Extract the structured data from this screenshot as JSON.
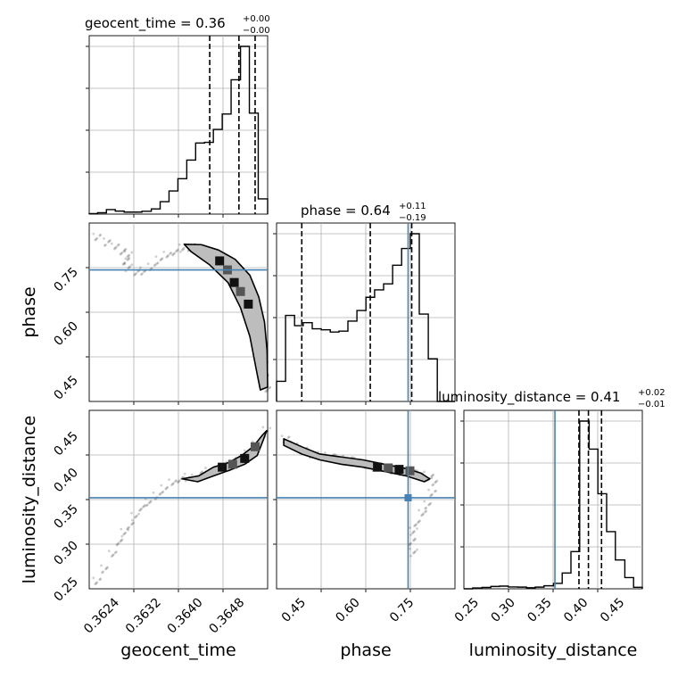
{
  "chart_data": {
    "type": "corner",
    "parameters": [
      "geocent_time",
      "phase",
      "luminosity_distance"
    ],
    "truths": {
      "phase": 0.745,
      "luminosity_distance": 0.36
    },
    "truth_color": "#4682b4",
    "panels": {
      "geocent_time_hist": {
        "title": {
          "prefix": "geocent_time = 0.36",
          "sup": "+0.00",
          "sub": "−0.00"
        },
        "xlim": [
          0.3619,
          0.36532
        ],
        "quantiles": [
          0.36421,
          0.36477,
          0.36508
        ],
        "edges": [
          0.3619,
          0.36206,
          0.36223,
          0.3624,
          0.36257,
          0.36274,
          0.36291,
          0.36309,
          0.36326,
          0.36343,
          0.3636,
          0.36377,
          0.36394,
          0.36411,
          0.36428,
          0.36445,
          0.36462,
          0.3648,
          0.36497,
          0.36514,
          0.36532
        ],
        "counts": [
          0.003,
          0.008,
          0.027,
          0.018,
          0.012,
          0.012,
          0.017,
          0.031,
          0.074,
          0.138,
          0.211,
          0.322,
          0.424,
          0.428,
          0.505,
          0.597,
          0.801,
          1.0,
          0.602,
          0.091
        ]
      },
      "phase_hist": {
        "title": {
          "prefix": "phase = 0.64",
          "sup": "+0.11",
          "sub": "−0.19"
        },
        "xlim": [
          0.38,
          0.875
        ],
        "quantiles": [
          0.45,
          0.64,
          0.755
        ],
        "edges": [
          0.38,
          0.405,
          0.43,
          0.454,
          0.479,
          0.504,
          0.529,
          0.553,
          0.578,
          0.603,
          0.628,
          0.652,
          0.677,
          0.702,
          0.727,
          0.751,
          0.776,
          0.801,
          0.826,
          0.85,
          0.875
        ],
        "counts": [
          0.12,
          0.513,
          0.452,
          0.47,
          0.433,
          0.427,
          0.414,
          0.419,
          0.479,
          0.542,
          0.621,
          0.665,
          0.701,
          0.812,
          0.912,
          1.0,
          0.521,
          0.254,
          0.0,
          0.0
        ]
      },
      "luminosity_distance_hist": {
        "title": {
          "prefix": "luminosity_distance = 0.41",
          "sup": "+0.02",
          "sub": "−0.01"
        },
        "xlim": [
          0.235,
          0.48
        ],
        "quantiles": [
          0.393,
          0.406,
          0.424
        ],
        "edges": [
          0.235,
          0.247,
          0.26,
          0.272,
          0.284,
          0.296,
          0.309,
          0.321,
          0.333,
          0.345,
          0.358,
          0.37,
          0.382,
          0.394,
          0.407,
          0.419,
          0.431,
          0.443,
          0.456,
          0.468,
          0.48
        ],
        "counts": [
          0.0,
          0.005,
          0.008,
          0.014,
          0.016,
          0.011,
          0.01,
          0.006,
          0.01,
          0.018,
          0.032,
          0.094,
          0.222,
          1.0,
          0.833,
          0.567,
          0.341,
          0.172,
          0.067,
          0.009
        ]
      },
      "phase_vs_geocent_time": {
        "xlim": [
          0.3619,
          0.36532
        ],
        "ylim": [
          0.38,
          0.875
        ],
        "samples": [
          [
            0.36205,
            0.835
          ],
          [
            0.36225,
            0.822
          ],
          [
            0.3624,
            0.808
          ],
          [
            0.36255,
            0.798
          ],
          [
            0.36265,
            0.786
          ],
          [
            0.3626,
            0.77
          ],
          [
            0.36265,
            0.752
          ],
          [
            0.3628,
            0.738
          ],
          [
            0.36295,
            0.742
          ],
          [
            0.3631,
            0.752
          ],
          [
            0.36325,
            0.772
          ],
          [
            0.3634,
            0.785
          ],
          [
            0.36355,
            0.796
          ],
          [
            0.3637,
            0.805
          ],
          [
            0.36385,
            0.808
          ],
          [
            0.364,
            0.806
          ],
          [
            0.36415,
            0.798
          ],
          [
            0.3643,
            0.786
          ],
          [
            0.36445,
            0.77
          ],
          [
            0.3646,
            0.752
          ],
          [
            0.36472,
            0.728
          ],
          [
            0.36484,
            0.7
          ],
          [
            0.36494,
            0.668
          ],
          [
            0.36503,
            0.632
          ],
          [
            0.3651,
            0.596
          ],
          [
            0.36516,
            0.558
          ],
          [
            0.36521,
            0.52
          ],
          [
            0.36525,
            0.482
          ],
          [
            0.36528,
            0.448
          ],
          [
            0.3653,
            0.412
          ]
        ],
        "contour_path": [
          [
            0.36372,
            0.816
          ],
          [
            0.36405,
            0.815
          ],
          [
            0.36438,
            0.8
          ],
          [
            0.3647,
            0.774
          ],
          [
            0.36498,
            0.73
          ],
          [
            0.36515,
            0.67
          ],
          [
            0.36526,
            0.6
          ],
          [
            0.36531,
            0.52
          ],
          [
            0.36532,
            0.42
          ],
          [
            0.36518,
            0.412
          ],
          [
            0.3651,
            0.47
          ],
          [
            0.36498,
            0.56
          ],
          [
            0.3648,
            0.64
          ],
          [
            0.36456,
            0.71
          ],
          [
            0.3642,
            0.76
          ],
          [
            0.36385,
            0.796
          ],
          [
            0.36372,
            0.816
          ]
        ],
        "peak_cells": [
          [
            0.3644,
            0.77
          ],
          [
            0.36455,
            0.745
          ],
          [
            0.36468,
            0.71
          ],
          [
            0.3648,
            0.685
          ],
          [
            0.36495,
            0.65
          ]
        ]
      },
      "luminosity_distance_vs_geocent_time": {
        "xlim": [
          0.3619,
          0.36532
        ],
        "ylim": [
          0.235,
          0.48
        ],
        "samples": [
          [
            0.36205,
            0.245
          ],
          [
            0.3622,
            0.262
          ],
          [
            0.36235,
            0.282
          ],
          [
            0.36248,
            0.3
          ],
          [
            0.36258,
            0.312
          ],
          [
            0.36268,
            0.322
          ],
          [
            0.36278,
            0.334
          ],
          [
            0.3629,
            0.346
          ],
          [
            0.36305,
            0.354
          ],
          [
            0.3632,
            0.362
          ],
          [
            0.36335,
            0.372
          ],
          [
            0.3635,
            0.38
          ],
          [
            0.36365,
            0.386
          ],
          [
            0.3638,
            0.388
          ],
          [
            0.364,
            0.392
          ],
          [
            0.3642,
            0.396
          ],
          [
            0.3644,
            0.4
          ],
          [
            0.3646,
            0.404
          ],
          [
            0.36478,
            0.41
          ],
          [
            0.36495,
            0.42
          ],
          [
            0.3651,
            0.432
          ],
          [
            0.36522,
            0.442
          ],
          [
            0.3653,
            0.452
          ]
        ],
        "contour_path": [
          [
            0.36368,
            0.386
          ],
          [
            0.364,
            0.39
          ],
          [
            0.36428,
            0.402
          ],
          [
            0.36456,
            0.408
          ],
          [
            0.36482,
            0.418
          ],
          [
            0.36504,
            0.43
          ],
          [
            0.36522,
            0.446
          ],
          [
            0.3653,
            0.452
          ],
          [
            0.36524,
            0.44
          ],
          [
            0.36512,
            0.418
          ],
          [
            0.36488,
            0.406
          ],
          [
            0.3646,
            0.398
          ],
          [
            0.36428,
            0.39
          ],
          [
            0.36398,
            0.382
          ],
          [
            0.36368,
            0.386
          ]
        ],
        "peak_cells": [
          [
            0.36445,
            0.402
          ],
          [
            0.36465,
            0.406
          ],
          [
            0.36488,
            0.414
          ],
          [
            0.36508,
            0.43
          ]
        ]
      },
      "luminosity_distance_vs_phase": {
        "xlim": [
          0.38,
          0.875
        ],
        "ylim": [
          0.235,
          0.48
        ],
        "samples": [
          [
            0.405,
            0.44
          ],
          [
            0.43,
            0.432
          ],
          [
            0.455,
            0.425
          ],
          [
            0.48,
            0.42
          ],
          [
            0.505,
            0.418
          ],
          [
            0.53,
            0.416
          ],
          [
            0.555,
            0.414
          ],
          [
            0.58,
            0.412
          ],
          [
            0.605,
            0.41
          ],
          [
            0.63,
            0.405
          ],
          [
            0.655,
            0.402
          ],
          [
            0.68,
            0.4
          ],
          [
            0.705,
            0.398
          ],
          [
            0.73,
            0.396
          ],
          [
            0.755,
            0.394
          ],
          [
            0.78,
            0.392
          ],
          [
            0.805,
            0.388
          ],
          [
            0.82,
            0.382
          ],
          [
            0.812,
            0.366
          ],
          [
            0.8,
            0.35
          ],
          [
            0.785,
            0.338
          ],
          [
            0.77,
            0.326
          ],
          [
            0.76,
            0.314
          ],
          [
            0.755,
            0.3
          ],
          [
            0.76,
            0.285
          ]
        ],
        "contour_path": [
          [
            0.4,
            0.441
          ],
          [
            0.45,
            0.43
          ],
          [
            0.5,
            0.42
          ],
          [
            0.56,
            0.416
          ],
          [
            0.62,
            0.412
          ],
          [
            0.68,
            0.406
          ],
          [
            0.74,
            0.4
          ],
          [
            0.78,
            0.394
          ],
          [
            0.805,
            0.386
          ],
          [
            0.79,
            0.382
          ],
          [
            0.74,
            0.39
          ],
          [
            0.68,
            0.396
          ],
          [
            0.62,
            0.402
          ],
          [
            0.56,
            0.406
          ],
          [
            0.5,
            0.412
          ],
          [
            0.45,
            0.42
          ],
          [
            0.4,
            0.432
          ],
          [
            0.4,
            0.441
          ]
        ],
        "peak_cells": [
          [
            0.66,
            0.402
          ],
          [
            0.69,
            0.401
          ],
          [
            0.72,
            0.399
          ],
          [
            0.75,
            0.397
          ]
        ]
      }
    },
    "ticks": {
      "geocent_time": [
        "0.3624",
        "0.3632",
        "0.3640",
        "0.3648"
      ],
      "geocent_time_values": [
        0.3624,
        0.3632,
        0.364,
        0.3648
      ],
      "phase": [
        "0.45",
        "0.60",
        "0.75"
      ],
      "phase_values": [
        0.45,
        0.6,
        0.75
      ],
      "luminosity_distance_x": [
        "0.25",
        "0.30",
        "0.35",
        "0.40",
        "0.45"
      ],
      "luminosity_distance_x_values": [
        0.25,
        0.3,
        0.35,
        0.4,
        0.45
      ],
      "luminosity_distance_y": [
        "0.25",
        "0.30",
        "0.35",
        "0.40",
        "0.45"
      ],
      "luminosity_distance_y_values": [
        0.25,
        0.3,
        0.35,
        0.4,
        0.45
      ]
    },
    "axis_labels": {
      "geocent_time": "geocent_time",
      "phase": "phase",
      "luminosity_distance": "luminosity_distance"
    }
  }
}
